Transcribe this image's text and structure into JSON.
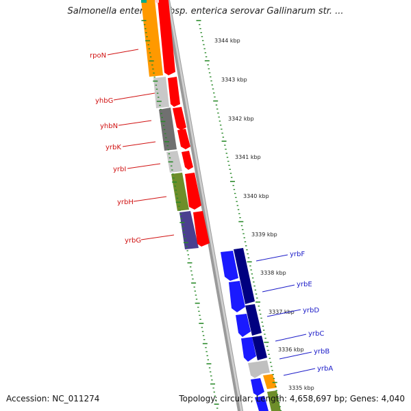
{
  "title": "Salmonella enterica subsp. enterica serovar Gallinarum str. ...",
  "footer": {
    "accession": "Accession: NC_011274",
    "topology": "Topology: circular; Length: 4,658,697 bp; Genes: 4,040"
  },
  "scale_labels": [
    "3344 kbp",
    "3343 kbp",
    "3342 kbp",
    "3341 kbp",
    "3340 kbp",
    "3339 kbp",
    "3338 kbp",
    "3337 kbp",
    "3336 kbp",
    "3335 kbp"
  ],
  "left_genes": [
    "rpoN",
    "yhbG",
    "yhbN",
    "yrbK",
    "yrbI",
    "yrbH",
    "yrbG"
  ],
  "right_genes": [
    "yrbF",
    "yrbE",
    "yrbD",
    "yrbC",
    "yrbB",
    "yrbA"
  ],
  "colors": {
    "forward_strand": "#ff0000",
    "reverse_strand": "#0000ff",
    "reverse_dark": "#000080",
    "ticks": "#2a8a2a",
    "red_label": "#d01010",
    "blue_label": "#1a1ac8"
  }
}
